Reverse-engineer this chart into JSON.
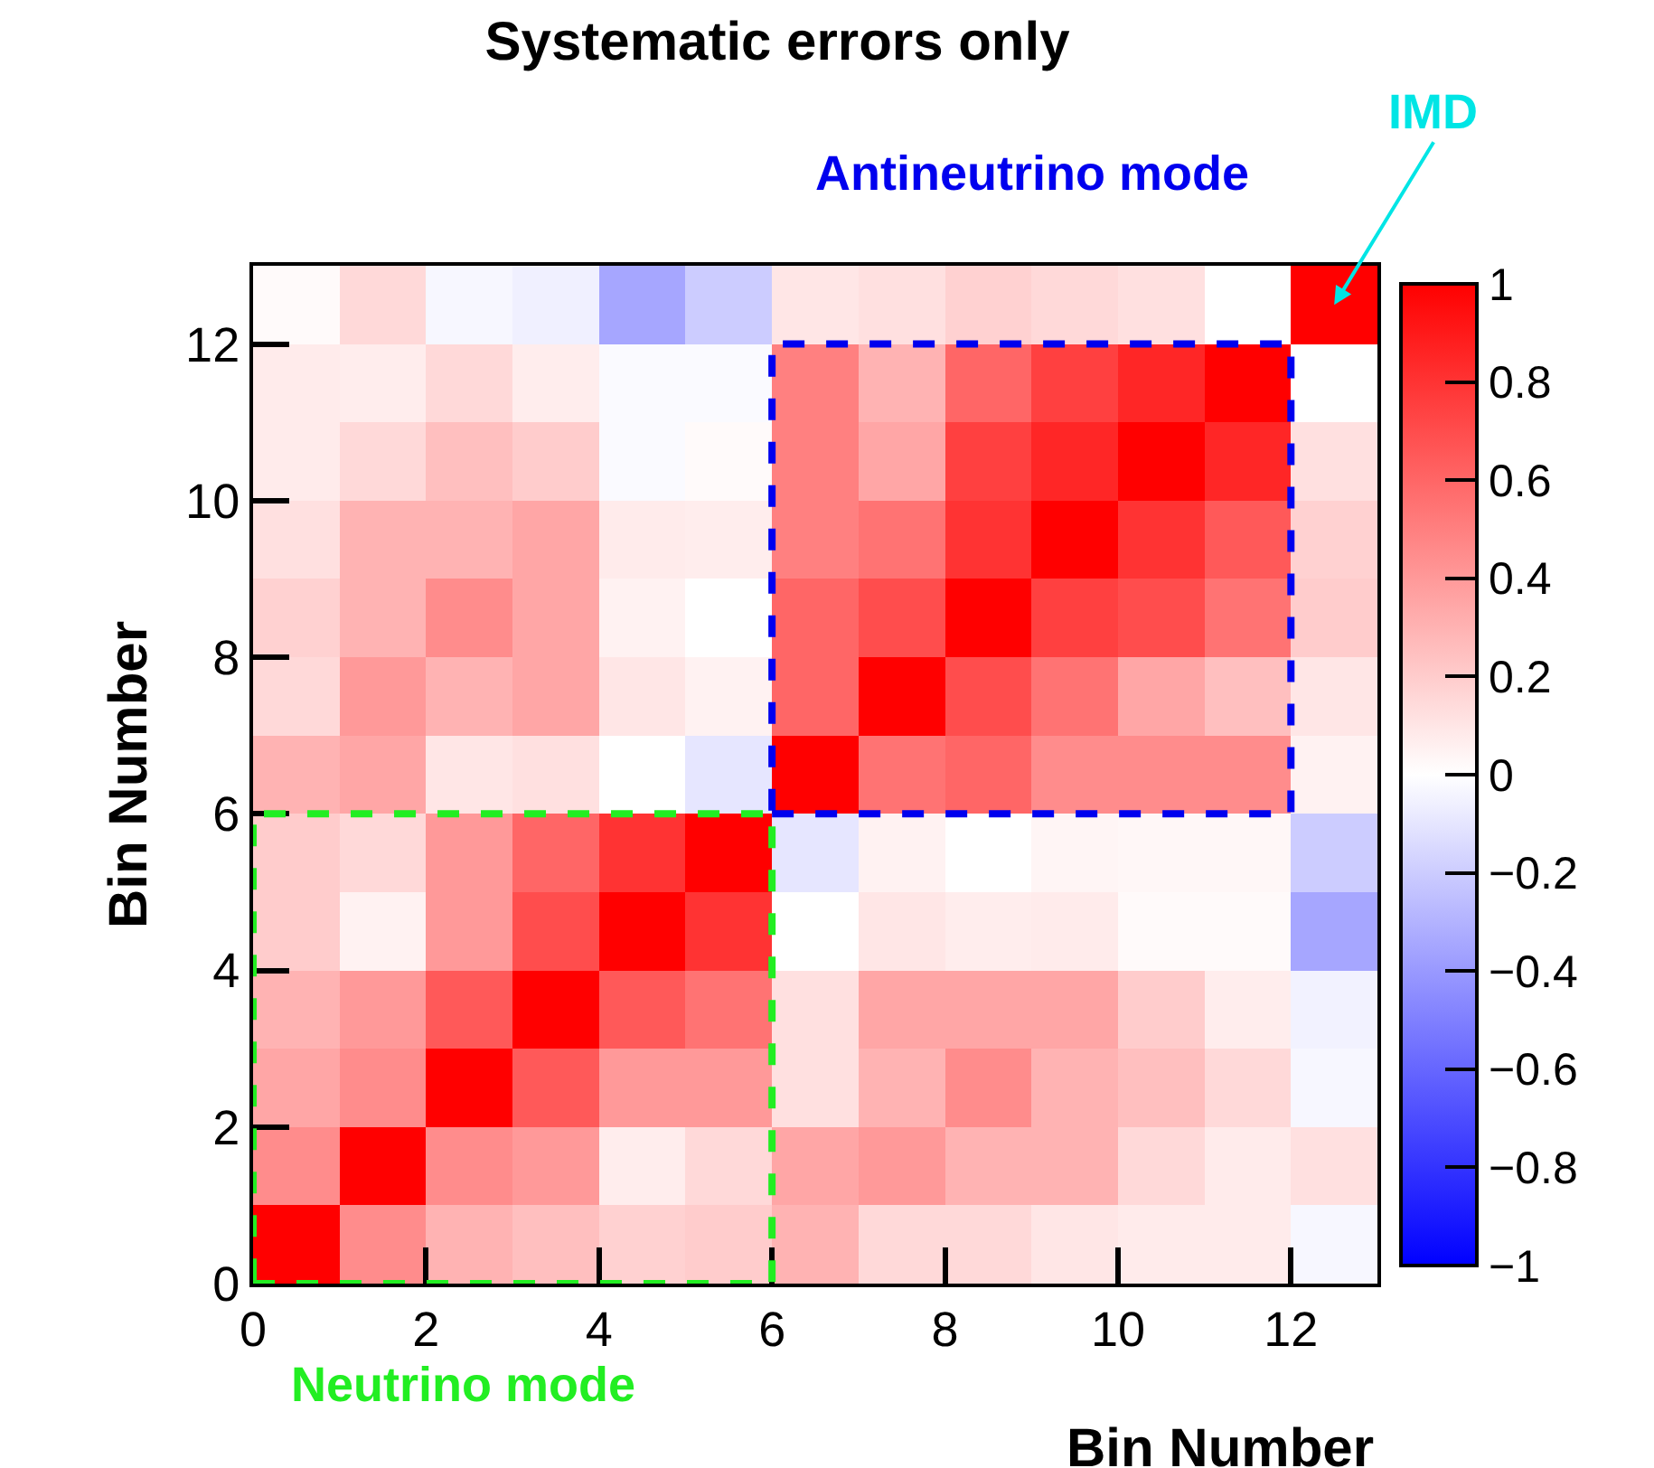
{
  "chart_data": {
    "type": "heatmap",
    "title": "Systematic errors only",
    "xlabel": "Bin Number",
    "ylabel": "Bin Number",
    "xlim": [
      0,
      13
    ],
    "ylim": [
      0,
      13
    ],
    "xticks": [
      0,
      2,
      4,
      6,
      8,
      10,
      12
    ],
    "yticks": [
      0,
      2,
      4,
      6,
      8,
      10,
      12
    ],
    "clim": [
      -1,
      1
    ],
    "cticks": [
      {
        "value": -1,
        "label": "−1"
      },
      {
        "value": -0.8,
        "label": "−0.8"
      },
      {
        "value": -0.6,
        "label": "−0.6"
      },
      {
        "value": -0.4,
        "label": "−0.4"
      },
      {
        "value": -0.2,
        "label": "−0.2"
      },
      0,
      0.2,
      0.4,
      0.6,
      0.8,
      1
    ],
    "cells": [
      [
        0.02,
        0.15,
        -0.03,
        -0.06,
        -0.35,
        -0.2,
        0.1,
        0.12,
        0.18,
        0.15,
        0.12,
        0.0,
        1.0
      ],
      [
        0.08,
        0.07,
        0.15,
        0.07,
        -0.02,
        -0.02,
        0.5,
        0.3,
        0.6,
        0.75,
        0.85,
        1.0,
        0.0
      ],
      [
        0.08,
        0.15,
        0.25,
        0.2,
        -0.02,
        0.02,
        0.5,
        0.35,
        0.75,
        0.85,
        1.0,
        0.85,
        0.12
      ],
      [
        0.12,
        0.3,
        0.3,
        0.35,
        0.08,
        0.07,
        0.5,
        0.55,
        0.8,
        1.0,
        0.8,
        0.65,
        0.18
      ],
      [
        0.18,
        0.3,
        0.45,
        0.35,
        0.05,
        0.0,
        0.6,
        0.7,
        1.0,
        0.75,
        0.7,
        0.55,
        0.2
      ],
      [
        0.15,
        0.4,
        0.3,
        0.35,
        0.1,
        0.05,
        0.6,
        1.0,
        0.7,
        0.55,
        0.35,
        0.25,
        0.1
      ],
      [
        0.3,
        0.35,
        0.1,
        0.12,
        0.0,
        -0.1,
        1.0,
        0.55,
        0.6,
        0.45,
        0.45,
        0.45,
        0.05
      ],
      [
        0.2,
        0.15,
        0.4,
        0.6,
        0.8,
        1.0,
        -0.1,
        0.05,
        0.0,
        0.04,
        0.03,
        0.03,
        -0.2
      ],
      [
        0.2,
        0.05,
        0.4,
        0.7,
        1.0,
        0.8,
        0.0,
        0.1,
        0.07,
        0.08,
        0.02,
        0.02,
        -0.35
      ],
      [
        0.3,
        0.4,
        0.65,
        1.0,
        0.65,
        0.55,
        0.12,
        0.35,
        0.35,
        0.35,
        0.2,
        0.07,
        -0.05
      ],
      [
        0.35,
        0.45,
        1.0,
        0.65,
        0.4,
        0.4,
        0.12,
        0.3,
        0.45,
        0.3,
        0.25,
        0.15,
        -0.03
      ],
      [
        0.45,
        1.0,
        0.45,
        0.4,
        0.07,
        0.15,
        0.35,
        0.4,
        0.3,
        0.3,
        0.15,
        0.08,
        0.12
      ],
      [
        1.0,
        0.45,
        0.3,
        0.25,
        0.18,
        0.2,
        0.3,
        0.15,
        0.15,
        0.1,
        0.08,
        0.08,
        -0.03
      ]
    ],
    "annotations": [
      "Neutrino mode",
      "Antineutrino mode",
      "IMD"
    ]
  }
}
